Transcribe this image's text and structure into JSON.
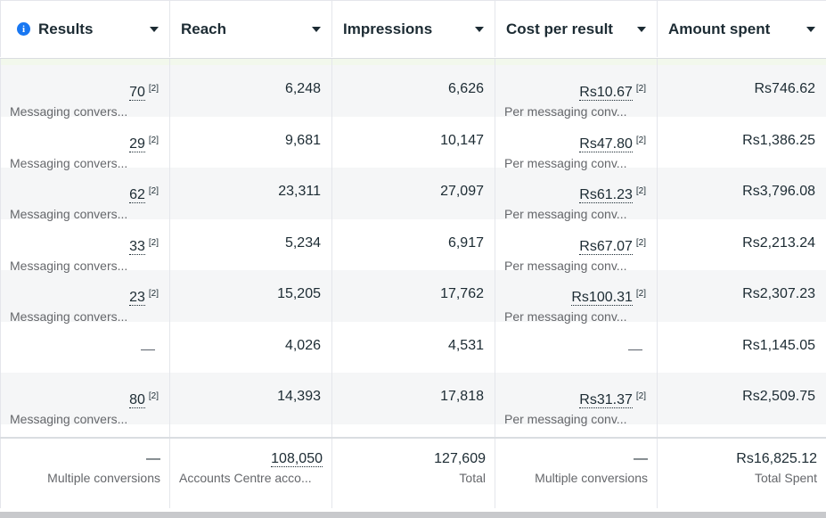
{
  "headers": [
    {
      "label": "Results",
      "info": true
    },
    {
      "label": "Reach",
      "info": false
    },
    {
      "label": "Impressions",
      "info": false
    },
    {
      "label": "Cost per result",
      "info": false
    },
    {
      "label": "Amount spent",
      "info": false
    }
  ],
  "rows": [
    {
      "results": "70",
      "results_note": "[2]",
      "results_sub": "Messaging convers...",
      "reach": "6,248",
      "impressions": "6,626",
      "cost": "Rs10.67",
      "cost_note": "[2]",
      "cost_sub": "Per messaging conv...",
      "spent": "Rs746.62"
    },
    {
      "results": "29",
      "results_note": "[2]",
      "results_sub": "Messaging convers...",
      "reach": "9,681",
      "impressions": "10,147",
      "cost": "Rs47.80",
      "cost_note": "[2]",
      "cost_sub": "Per messaging conv...",
      "spent": "Rs1,386.25"
    },
    {
      "results": "62",
      "results_note": "[2]",
      "results_sub": "Messaging convers...",
      "reach": "23,311",
      "impressions": "27,097",
      "cost": "Rs61.23",
      "cost_note": "[2]",
      "cost_sub": "Per messaging conv...",
      "spent": "Rs3,796.08"
    },
    {
      "results": "33",
      "results_note": "[2]",
      "results_sub": "Messaging convers...",
      "reach": "5,234",
      "impressions": "6,917",
      "cost": "Rs67.07",
      "cost_note": "[2]",
      "cost_sub": "Per messaging conv...",
      "spent": "Rs2,213.24"
    },
    {
      "results": "23",
      "results_note": "[2]",
      "results_sub": "Messaging convers...",
      "reach": "15,205",
      "impressions": "17,762",
      "cost": "Rs100.31",
      "cost_note": "[2]",
      "cost_sub": "Per messaging conv...",
      "spent": "Rs2,307.23"
    },
    {
      "results": "—",
      "results_note": "",
      "results_sub": "",
      "reach": "4,026",
      "impressions": "4,531",
      "cost": "—",
      "cost_note": "",
      "cost_sub": "",
      "spent": "Rs1,145.05"
    },
    {
      "results": "80",
      "results_note": "[2]",
      "results_sub": "Messaging convers...",
      "reach": "14,393",
      "impressions": "17,818",
      "cost": "Rs31.37",
      "cost_note": "[2]",
      "cost_sub": "Per messaging conv...",
      "spent": "Rs2,509.75"
    }
  ],
  "totals": {
    "results": "—",
    "results_sub": "Multiple conversions",
    "reach": "108,050",
    "reach_sub": "Accounts Centre acco...",
    "impressions": "127,609",
    "impressions_sub": "Total",
    "cost": "—",
    "cost_sub": "Multiple conversions",
    "spent": "Rs16,825.12",
    "spent_sub": "Total Spent"
  },
  "colors": {
    "accent": "#1877f2",
    "row_alt": "#f5f6f7",
    "highlight_row": "#f2f8ec"
  },
  "icons": {
    "info": "info-icon",
    "sort": "chevron-down-icon"
  }
}
